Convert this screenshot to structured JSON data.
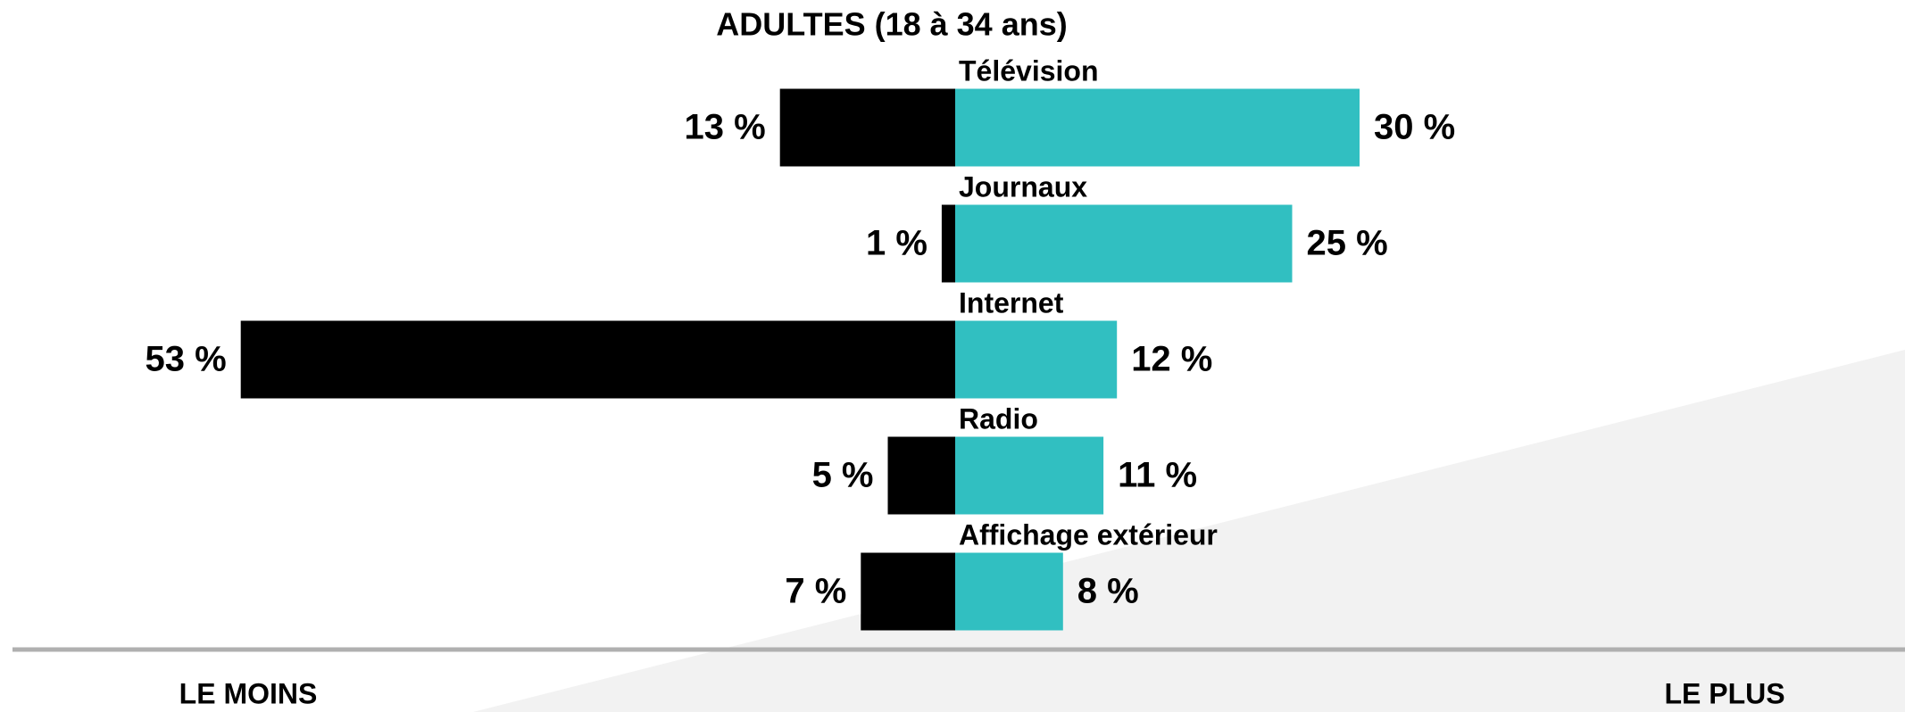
{
  "chart_data": {
    "type": "diverging-bar",
    "title": "ADULTES (18 à 34 ans)",
    "categories": [
      "Télévision",
      "Journaux",
      "Internet",
      "Radio",
      "Affichage extérieur"
    ],
    "series": [
      {
        "name": "LE MOINS",
        "color": "#000000",
        "values": [
          13,
          1,
          53,
          5,
          7
        ],
        "value_labels": [
          "13 %",
          "1 %",
          "53 %",
          "5 %",
          "7 %"
        ]
      },
      {
        "name": "LE PLUS",
        "color": "#31bfc1",
        "values": [
          30,
          25,
          12,
          11,
          8
        ],
        "value_labels": [
          "30 %",
          "25 %",
          "12 %",
          "11 %",
          "8 %"
        ]
      }
    ]
  }
}
